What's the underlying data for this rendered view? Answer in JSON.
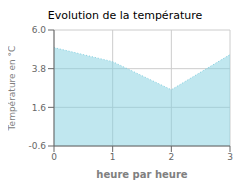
{
  "chart_data": {
    "type": "area",
    "title": "Evolution de la température",
    "x_label": "heure par heure",
    "y_label": "Température en °C",
    "x": [
      0,
      1,
      2,
      3
    ],
    "values": [
      5.0,
      4.2,
      2.6,
      4.6
    ],
    "color": "#82cfe0",
    "line_style": "dotted",
    "xlim": [
      0,
      3
    ],
    "xticks": [
      0,
      1,
      2,
      3
    ],
    "ylim": [
      -0.6,
      6.0
    ],
    "yticks": [
      -0.6,
      1.6,
      3.8,
      {
        "value": 6.0,
        "label": "6.0"
      }
    ],
    "grid": true
  }
}
